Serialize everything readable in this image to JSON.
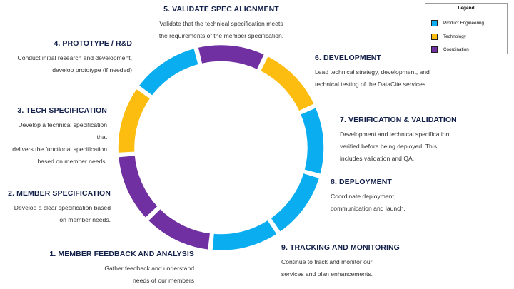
{
  "colors": {
    "product_engineering": "#0aaef0",
    "technology": "#fdbd10",
    "coordination": "#7130a1"
  },
  "legend": {
    "title": "Legend",
    "items": [
      {
        "label": "Product Engineering",
        "color": "#0aaef0"
      },
      {
        "label": "Technology",
        "color": "#fdbd10"
      },
      {
        "label": "Coordination",
        "color": "#7130a1"
      }
    ]
  },
  "steps": [
    {
      "title": "1. MEMBER FEEDBACK AND ANALYSIS",
      "description": "Gather feedback and understand\nneeds of our members",
      "category": "product_engineering"
    },
    {
      "title": "2. MEMBER SPECIFICATION",
      "description": "Develop a clear specification based\non member needs.",
      "category": "product_engineering"
    },
    {
      "title": "3. TECH SPECIFICATION",
      "description": "Develop a technical specification that\ndelivers the functional specification\nbased on member needs.",
      "category": "technology"
    },
    {
      "title": "4. PROTOTYPE / R&D",
      "description": "Conduct initial research and development,\ndevelop prototype (if needed)",
      "category": "coordination"
    },
    {
      "title": "5. VALIDATE SPEC ALIGNMENT",
      "description": "Validate that the technical specification meets\nthe requirements of the member specification.",
      "category": "product_engineering"
    },
    {
      "title": "6. DEVELOPMENT",
      "description": "Lead technical strategy, development, and\ntechnical testing of the DataCite services.",
      "category": "technology"
    },
    {
      "title": "7. VERIFICATION & VALIDATION",
      "description": "Development and technical specification\nverified before being deployed. This\nincludes validation and QA.",
      "category": "coordination"
    },
    {
      "title": "8. DEPLOYMENT",
      "description": "Coordinate deployment,\ncommunication and launch.",
      "category": "coordination"
    },
    {
      "title": "9. TRACKING AND MONITORING",
      "description": "Continue to track and monitor our\nservices and plan enhancements.",
      "category": "product_engineering"
    }
  ],
  "ring_segments": [
    {
      "step": "1",
      "category": "product_engineering"
    },
    {
      "step": "2",
      "category": "product_engineering"
    },
    {
      "step": "3",
      "category": "technology"
    },
    {
      "step": "4",
      "category": "coordination"
    },
    {
      "step": "5",
      "category": "product_engineering"
    },
    {
      "step": "6",
      "category": "technology"
    },
    {
      "step": "7",
      "category": "coordination"
    },
    {
      "step": "8",
      "category": "coordination"
    },
    {
      "step": "9",
      "category": "product_engineering"
    }
  ]
}
